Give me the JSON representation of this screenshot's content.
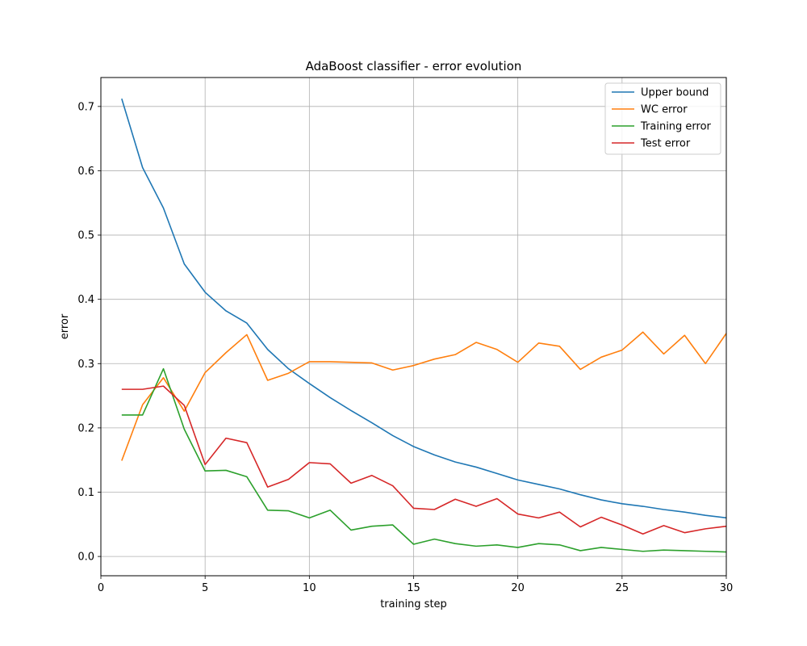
{
  "chart_data": {
    "type": "line",
    "title": "AdaBoost classifier - error evolution",
    "xlabel": "training step",
    "ylabel": "error",
    "xlim": [
      0,
      30
    ],
    "ylim": [
      -0.03,
      0.745
    ],
    "xticks": [
      0,
      5,
      10,
      15,
      20,
      25,
      30
    ],
    "yticks": [
      0.0,
      0.1,
      0.2,
      0.3,
      0.4,
      0.5,
      0.6,
      0.7
    ],
    "grid": true,
    "legend_position": "top-right",
    "x": [
      1,
      2,
      3,
      4,
      5,
      6,
      7,
      8,
      9,
      10,
      11,
      12,
      13,
      14,
      15,
      16,
      17,
      18,
      19,
      20,
      21,
      22,
      23,
      24,
      25,
      26,
      27,
      28,
      29,
      30
    ],
    "series": [
      {
        "name": "Upper bound",
        "color": "#1f77b4",
        "values": [
          0.712,
          0.605,
          0.542,
          0.455,
          0.411,
          0.382,
          0.363,
          0.322,
          0.292,
          0.269,
          0.247,
          0.227,
          0.208,
          0.188,
          0.171,
          0.158,
          0.147,
          0.139,
          0.129,
          0.119,
          0.112,
          0.105,
          0.096,
          0.088,
          0.082,
          0.078,
          0.073,
          0.069,
          0.064,
          0.06
        ]
      },
      {
        "name": "WC error",
        "color": "#ff7f0e",
        "values": [
          0.149,
          0.236,
          0.278,
          0.226,
          0.286,
          0.317,
          0.345,
          0.274,
          0.285,
          0.303,
          0.303,
          0.302,
          0.301,
          0.29,
          0.297,
          0.307,
          0.314,
          0.333,
          0.322,
          0.302,
          0.332,
          0.327,
          0.291,
          0.31,
          0.321,
          0.349,
          0.315,
          0.344,
          0.3,
          0.347
        ]
      },
      {
        "name": "Training error",
        "color": "#2ca02c",
        "values": [
          0.22,
          0.22,
          0.292,
          0.198,
          0.133,
          0.134,
          0.124,
          0.072,
          0.071,
          0.06,
          0.072,
          0.041,
          0.047,
          0.049,
          0.019,
          0.027,
          0.02,
          0.016,
          0.018,
          0.014,
          0.02,
          0.018,
          0.009,
          0.014,
          0.011,
          0.008,
          0.01,
          0.009,
          0.008,
          0.007
        ]
      },
      {
        "name": "Test error",
        "color": "#d62728",
        "values": [
          0.26,
          0.26,
          0.265,
          0.235,
          0.143,
          0.184,
          0.177,
          0.108,
          0.12,
          0.146,
          0.144,
          0.114,
          0.126,
          0.11,
          0.075,
          0.073,
          0.089,
          0.078,
          0.09,
          0.066,
          0.06,
          0.069,
          0.046,
          0.061,
          0.049,
          0.035,
          0.048,
          0.037,
          0.043,
          0.047
        ]
      }
    ]
  }
}
